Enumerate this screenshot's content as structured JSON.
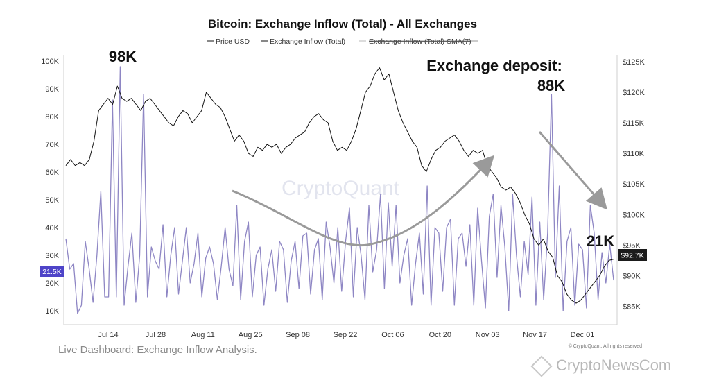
{
  "chart_data": {
    "type": "line",
    "title": "Bitcoin: Exchange Inflow (Total) - All Exchanges",
    "legend": [
      "Price USD",
      "Exchange Inflow (Total)",
      "Exchange Inflow (Total) SMA(7)"
    ],
    "x_ticks": [
      "Jul 14",
      "Jul 28",
      "Aug 11",
      "Aug 25",
      "Sep 08",
      "Sep 22",
      "Oct 06",
      "Oct 20",
      "Nov 03",
      "Nov 17",
      "Dec 01"
    ],
    "y_left_ticks": [
      "10K",
      "20K",
      "30K",
      "40K",
      "50K",
      "60K",
      "70K",
      "80K",
      "90K",
      "100K"
    ],
    "y_left_range": [
      5000,
      102000
    ],
    "y_right_ticks": [
      "$85K",
      "$90K",
      "$95K",
      "$100K",
      "$105K",
      "$110K",
      "$115K",
      "$120K",
      "$125K"
    ],
    "y_right_range": [
      82000,
      126000
    ],
    "series": [
      {
        "name": "Exchange Inflow (Total)",
        "color": "#8e86c4",
        "axis": "left",
        "values": [
          36000,
          25000,
          27000,
          9000,
          12000,
          35000,
          25000,
          13000,
          30000,
          53000,
          15000,
          15000,
          86000,
          15000,
          98000,
          12000,
          26000,
          38000,
          13000,
          30000,
          88000,
          15000,
          33000,
          28000,
          25000,
          41000,
          15000,
          30000,
          40000,
          16000,
          28000,
          40000,
          20000,
          27000,
          38000,
          15000,
          29000,
          33000,
          27000,
          14000,
          26000,
          40000,
          25000,
          19000,
          48000,
          14000,
          35000,
          42000,
          15000,
          30000,
          33000,
          12000,
          25000,
          32000,
          17000,
          35000,
          32000,
          13000,
          28000,
          35000,
          18000,
          37000,
          38000,
          16000,
          32000,
          36000,
          14000,
          42000,
          33000,
          20000,
          40000,
          17000,
          35000,
          47000,
          15000,
          40000,
          30000,
          14000,
          48000,
          24000,
          32000,
          52000,
          18000,
          49000,
          26000,
          48000,
          20000,
          30000,
          36000,
          12000,
          27000,
          38000,
          16000,
          55000,
          12000,
          40000,
          38000,
          17000,
          40000,
          43000,
          12000,
          36000,
          38000,
          26000,
          41000,
          12000,
          47000,
          28000,
          11000,
          44000,
          52000,
          22000,
          48000,
          33000,
          10000,
          52000,
          30000,
          15000,
          35000,
          23000,
          51000,
          12000,
          42000,
          14000,
          38000,
          88000,
          22000,
          55000,
          10000,
          35000,
          40000,
          12000,
          34000,
          32000,
          11000,
          48000,
          38000,
          14000,
          31000,
          20000,
          34000,
          21000
        ]
      },
      {
        "name": "Price USD",
        "color": "#111111",
        "axis": "right",
        "values": [
          108000,
          109000,
          108000,
          108500,
          108000,
          109000,
          112000,
          117000,
          118000,
          119000,
          118000,
          121000,
          119000,
          118500,
          119000,
          118000,
          117000,
          118500,
          119000,
          118000,
          117000,
          116000,
          115000,
          114500,
          116000,
          117000,
          116500,
          115000,
          116000,
          117000,
          120000,
          119000,
          118000,
          117500,
          116000,
          114000,
          112000,
          113000,
          112000,
          110000,
          109500,
          111000,
          110500,
          111500,
          111000,
          111500,
          110000,
          111000,
          111500,
          112500,
          113000,
          113500,
          115000,
          116000,
          116500,
          115500,
          115000,
          112000,
          110500,
          111000,
          110500,
          112000,
          114000,
          117000,
          120000,
          121000,
          123000,
          124000,
          122000,
          123000,
          120000,
          117000,
          115000,
          113500,
          112000,
          111000,
          108000,
          107000,
          109000,
          110500,
          111000,
          112000,
          112500,
          113000,
          112000,
          110500,
          109500,
          110500,
          110000,
          110500,
          108000,
          107000,
          106000,
          104500,
          104000,
          104500,
          103500,
          102000,
          100000,
          98500,
          96000,
          95000,
          96000,
          94000,
          93000,
          90000,
          89000,
          87000,
          86000,
          85500,
          86000,
          87000,
          88000,
          89000,
          90000,
          91500,
          92500,
          92700
        ]
      }
    ],
    "annotations": [
      {
        "text": "98K"
      },
      {
        "text": "Exchange deposit:"
      },
      {
        "text": "88K"
      },
      {
        "text": "21K"
      }
    ],
    "current_price_label": "$92.7K",
    "current_inflow_label": "21.5K",
    "watermark": "CryptoQuant",
    "credit": "© CryptoQuant. All rights reserved",
    "colors": {
      "inflow": "#8e86c4",
      "price": "#111111",
      "arrow": "#9a9a9a",
      "inflow_badge": "#4e44c8",
      "price_badge": "#1b1b1b"
    }
  },
  "footer": {
    "link_text": "Live Dashboard: Exchange Inflow Analysis.",
    "site_watermark": "CryptoNewsCom"
  }
}
